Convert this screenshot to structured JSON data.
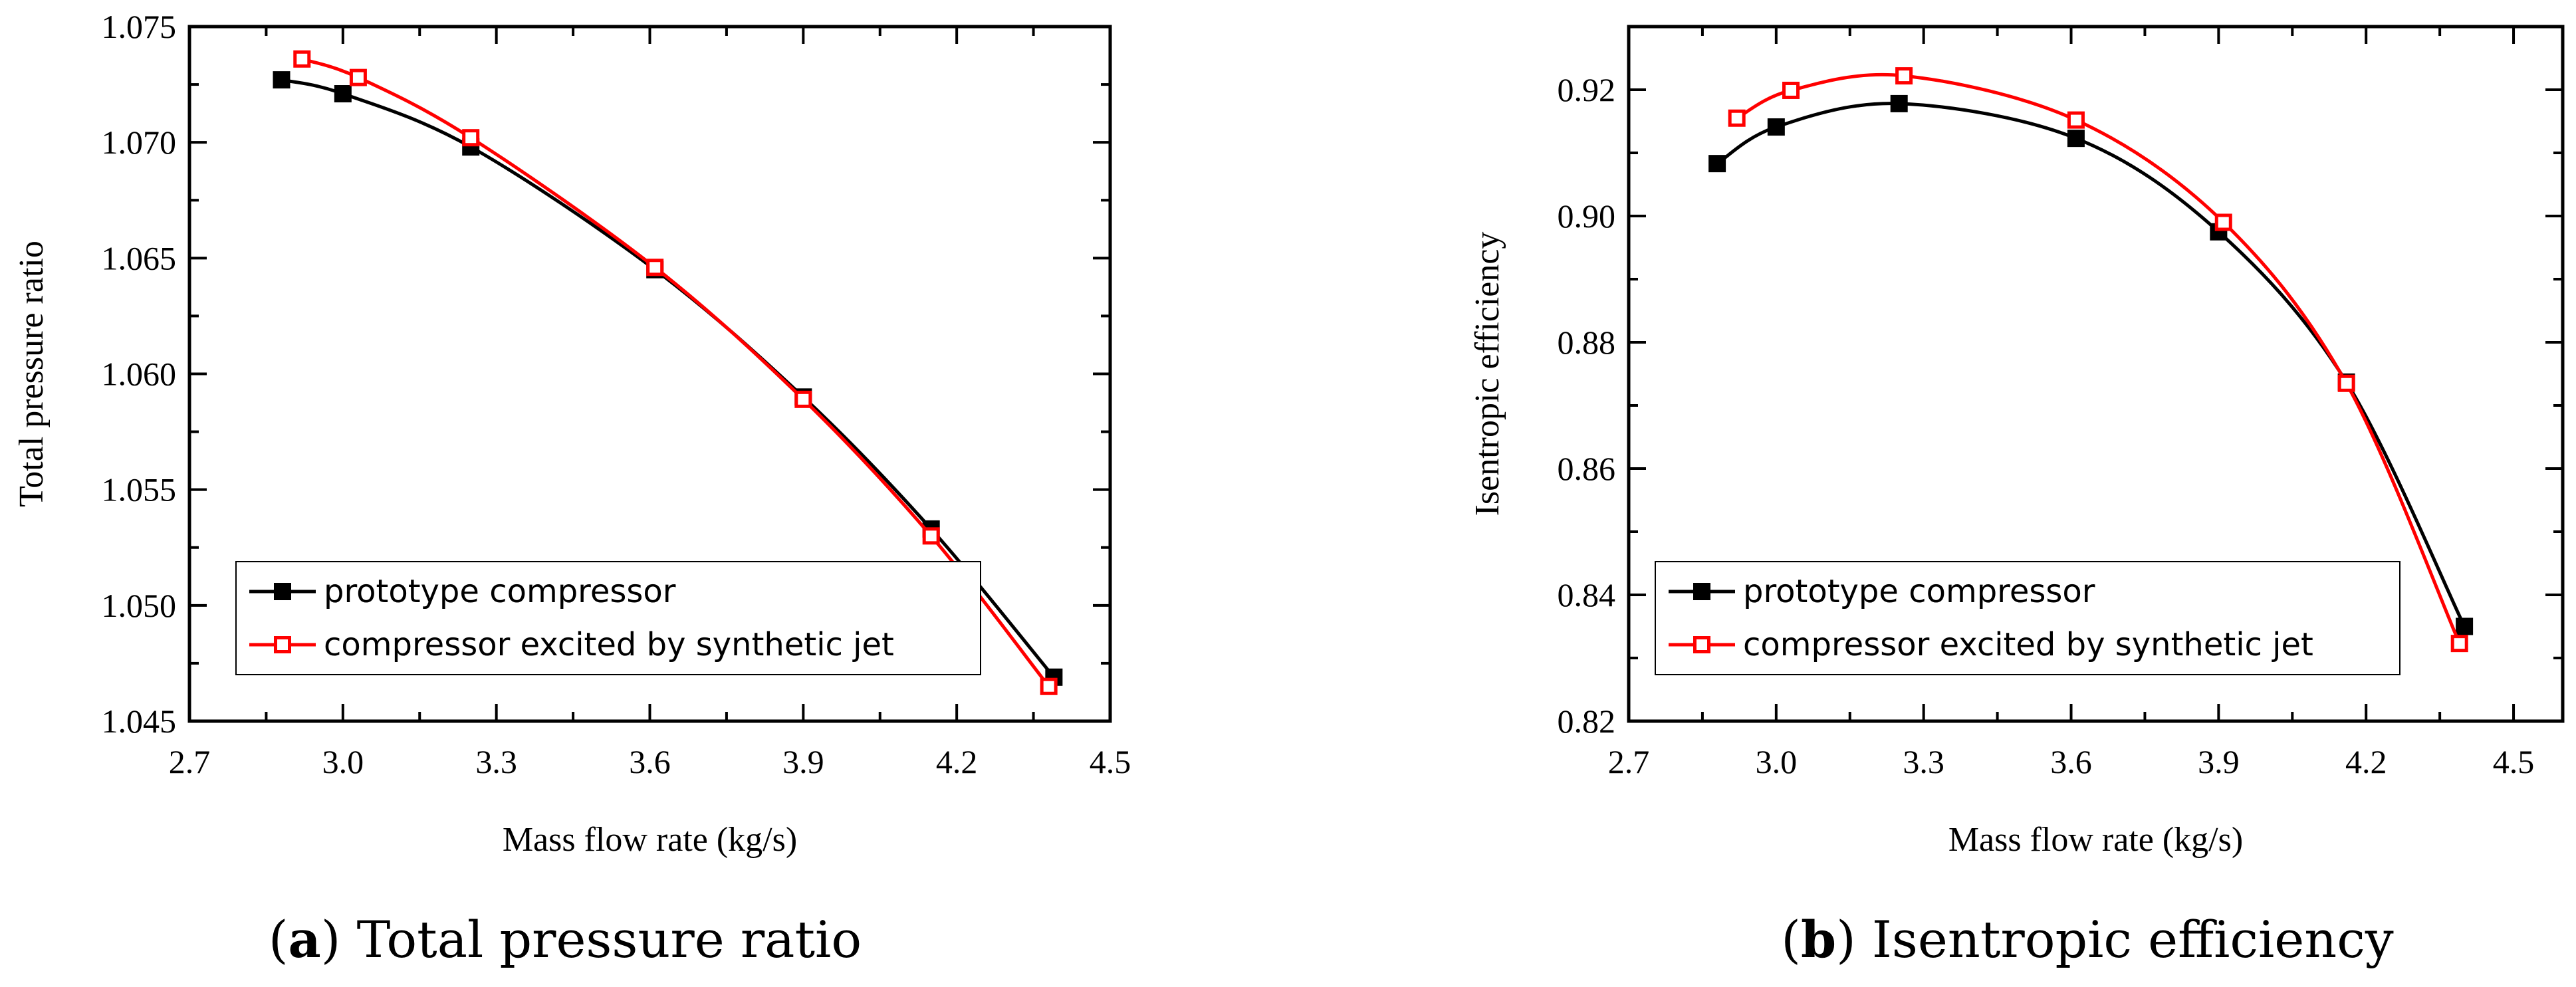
{
  "chart_data": [
    {
      "type": "line",
      "ylabel": "Total pressure ratio",
      "xlabel": "Mass flow rate (kg/s)",
      "xlim": [
        2.7,
        4.5
      ],
      "ylim": [
        1.045,
        1.075
      ],
      "xticks": [
        "2.7",
        "3.0",
        "3.3",
        "3.6",
        "3.9",
        "4.2",
        "4.5"
      ],
      "yticks": [
        "1.045",
        "1.050",
        "1.055",
        "1.060",
        "1.065",
        "1.070",
        "1.075"
      ],
      "legend": {
        "location": "bottom-left"
      },
      "caption": {
        "letter": "a",
        "text": " Total pressure ratio"
      },
      "series": [
        {
          "name": "prototype compressor",
          "color": "#000000",
          "marker": "filled-square",
          "x": [
            2.88,
            3.0,
            3.25,
            3.61,
            3.9,
            4.15,
            4.39
          ],
          "y": [
            1.0727,
            1.0721,
            1.0698,
            1.0645,
            1.059,
            1.0533,
            1.0469
          ]
        },
        {
          "name": "compressor excited by synthetic jet",
          "color": "#ff0000",
          "marker": "open-square",
          "x": [
            2.92,
            3.03,
            3.25,
            3.61,
            3.9,
            4.15,
            4.38
          ],
          "y": [
            1.0736,
            1.0728,
            1.0702,
            1.0646,
            1.0589,
            1.053,
            1.0465
          ]
        }
      ]
    },
    {
      "type": "line",
      "ylabel": "Isentropic efficiency",
      "xlabel": "Mass flow rate (kg/s)",
      "xlim": [
        2.7,
        4.6
      ],
      "ylim": [
        0.82,
        0.93
      ],
      "xticks": [
        "2.7",
        "3.0",
        "3.3",
        "3.6",
        "3.9",
        "4.2",
        "4.5"
      ],
      "yticks": [
        "0.82",
        "0.84",
        "0.86",
        "0.88",
        "0.90",
        "0.92"
      ],
      "legend": {
        "location": "bottom-left"
      },
      "caption": {
        "letter": "b",
        "text": " Isentropic efficiency"
      },
      "series": [
        {
          "name": "prototype compressor",
          "color": "#000000",
          "marker": "filled-square",
          "x": [
            2.88,
            3.0,
            3.25,
            3.61,
            3.9,
            4.16,
            4.4
          ],
          "y": [
            0.9083,
            0.9141,
            0.9178,
            0.9123,
            0.8975,
            0.8737,
            0.835
          ]
        },
        {
          "name": "compressor excited by synthetic jet",
          "color": "#ff0000",
          "marker": "open-square",
          "x": [
            2.92,
            3.03,
            3.26,
            3.61,
            3.91,
            4.16,
            4.39
          ],
          "y": [
            0.9155,
            0.9199,
            0.9222,
            0.9152,
            0.899,
            0.8735,
            0.8323
          ]
        }
      ]
    }
  ]
}
